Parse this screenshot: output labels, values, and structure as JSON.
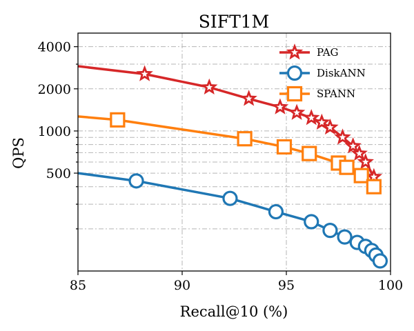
{
  "chart_data": {
    "type": "line",
    "title": "SIFT1M",
    "xlabel": "Recall@10 (%)",
    "ylabel": "QPS",
    "xlim": [
      85,
      100
    ],
    "ylim": [
      100,
      5000
    ],
    "yscale": "log",
    "grid": true,
    "legend_position": "top-right",
    "x_ticks": [
      85,
      90,
      95,
      100
    ],
    "x_tick_labels": [
      "85",
      "90",
      "95",
      "100"
    ],
    "y_ticks": [
      500,
      1000,
      2000,
      4000
    ],
    "y_tick_labels": [
      "500",
      "1000",
      "2000",
      "4000"
    ],
    "y_minor_ticks": [
      200,
      300,
      400,
      600,
      700,
      800,
      900,
      3000
    ],
    "series": [
      {
        "name": "PAG",
        "color": "#d62728",
        "marker": "star",
        "x": [
          85,
          88.2,
          91.3,
          93.2,
          94.7,
          95.5,
          96.2,
          96.7,
          97.1,
          97.7,
          98.2,
          98.5,
          98.8,
          99.2
        ],
        "y": [
          2900,
          2550,
          2050,
          1700,
          1480,
          1350,
          1240,
          1150,
          1060,
          900,
          780,
          690,
          600,
          470
        ]
      },
      {
        "name": "DiskANN",
        "color": "#1f77b4",
        "marker": "circle",
        "x": [
          85,
          87.8,
          92.3,
          94.5,
          96.2,
          97.1,
          97.8,
          98.4,
          98.8,
          99.1,
          99.3,
          99.5
        ],
        "y": [
          500,
          440,
          330,
          265,
          225,
          195,
          175,
          160,
          150,
          140,
          130,
          118
        ]
      },
      {
        "name": "SPANN",
        "color": "#ff7f0e",
        "marker": "square",
        "x": [
          85,
          86.9,
          93.0,
          94.9,
          96.1,
          97.5,
          97.9,
          98.6,
          99.2
        ],
        "y": [
          1270,
          1200,
          880,
          770,
          690,
          590,
          550,
          480,
          400
        ]
      }
    ]
  }
}
